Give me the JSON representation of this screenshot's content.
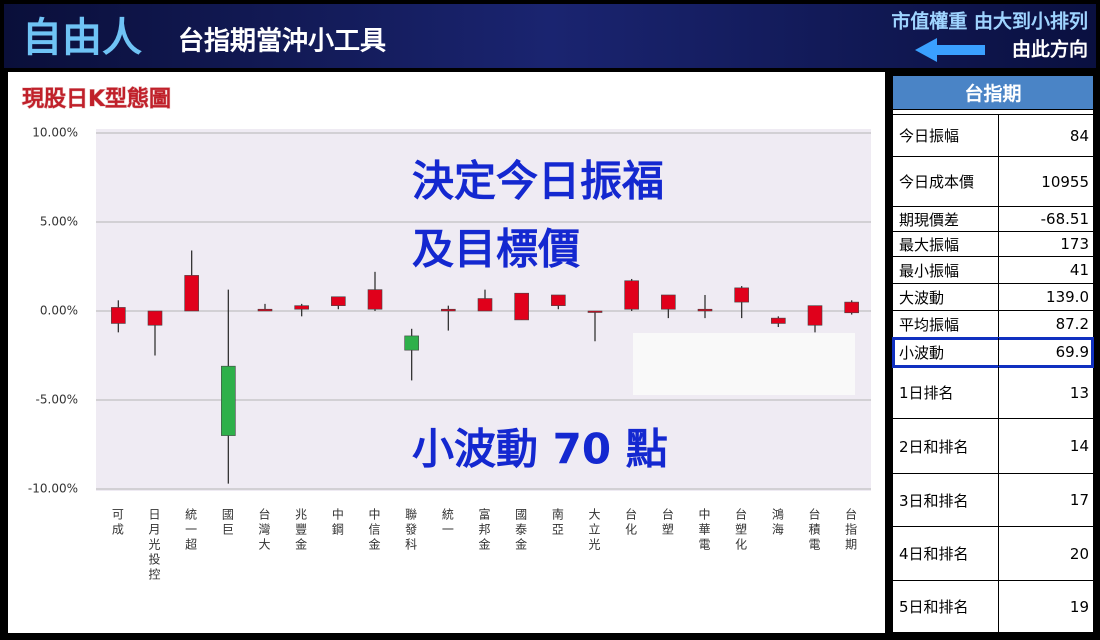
{
  "header": {
    "brand": "自由人",
    "title": "台指期當沖小工具",
    "sort_note": "市值權重 由大到小排列",
    "direction_note": "由此方向"
  },
  "chart_data": {
    "type": "candlestick",
    "title": "現股日K型態圖",
    "annotations": [
      "決定今日振福",
      "及目標價",
      "小波動 70 點"
    ],
    "categories": [
      "可成",
      "日月光投控",
      "統一超",
      "國巨",
      "台灣大",
      "兆豐金",
      "中鋼",
      "中信金",
      "聯發科",
      "統一",
      "富邦金",
      "國泰金",
      "南亞",
      "大立光",
      "台化",
      "台塑",
      "中華電",
      "台塑化",
      "鴻海",
      "台積電",
      "台指期"
    ],
    "open": [
      -0.7,
      -0.8,
      0,
      -3.1,
      0,
      0.1,
      0.3,
      0.1,
      -1.4,
      0,
      0,
      -0.5,
      0.3,
      0,
      0.1,
      0.1,
      0,
      0.5,
      -0.7,
      -0.8,
      -0.1
    ],
    "high": [
      0.6,
      0,
      3.4,
      1.2,
      0.4,
      0.4,
      0.8,
      2.2,
      -1.0,
      0.3,
      1.2,
      1.0,
      0.9,
      0,
      1.8,
      0.9,
      0.9,
      1.4,
      -0.3,
      0.3,
      0.6
    ],
    "low": [
      -1.2,
      -2.5,
      0,
      -9.7,
      0,
      -0.3,
      0.1,
      0,
      -3.9,
      -1.1,
      0,
      -0.5,
      0.1,
      -1.7,
      0,
      -0.4,
      -0.4,
      -0.4,
      -0.9,
      -1.2,
      -0.2
    ],
    "close": [
      0.2,
      0,
      2.0,
      -7.0,
      0.1,
      0.3,
      0.8,
      1.2,
      -2.2,
      0.1,
      0.7,
      1.0,
      0.9,
      0,
      1.7,
      0.9,
      0.1,
      1.3,
      -0.4,
      0.3,
      0.5
    ],
    "up_color": "#e0001b",
    "down_color": "#2eb04a",
    "ylim": [
      -10,
      10
    ],
    "yticks": [
      {
        "value": -10,
        "label": "-10.00%"
      },
      {
        "value": -5,
        "label": "-5.00%"
      },
      {
        "value": 0,
        "label": "0.00%"
      },
      {
        "value": 5,
        "label": "5.00%"
      },
      {
        "value": 10,
        "label": "10.00%"
      }
    ],
    "grid": true
  },
  "table": {
    "title": "台指期",
    "rows": [
      {
        "label": "今日振幅",
        "value": "84"
      },
      {
        "label": "今日成本價",
        "value": "10955"
      },
      {
        "label": "期現價差",
        "value": "-68.51"
      },
      {
        "label": "最大振幅",
        "value": "173"
      },
      {
        "label": "最小振幅",
        "value": "41"
      },
      {
        "label": "大波動",
        "value": "139.0"
      },
      {
        "label": "平均振幅",
        "value": "87.2"
      },
      {
        "label": "小波動",
        "value": "69.9",
        "highlight": true
      },
      {
        "label": "1日排名",
        "value": "13"
      },
      {
        "label": "2日和排名",
        "value": "14"
      },
      {
        "label": "3日和排名",
        "value": "17"
      },
      {
        "label": "4日和排名",
        "value": "20"
      },
      {
        "label": "5日和排名",
        "value": "19"
      }
    ]
  }
}
